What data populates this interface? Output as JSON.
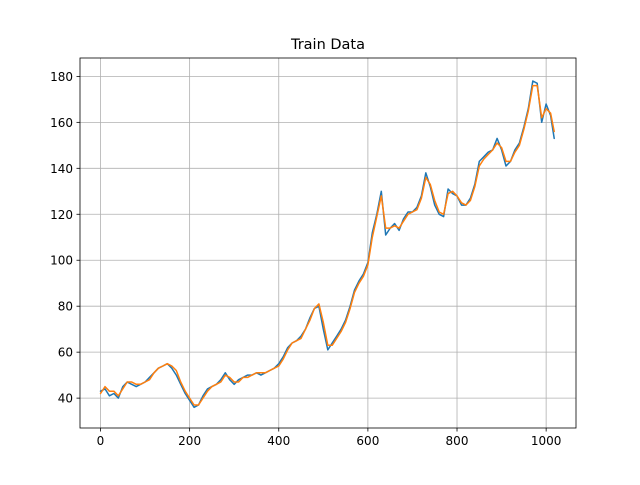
{
  "chart_data": {
    "type": "line",
    "title": "Train Data",
    "xlabel": "",
    "ylabel": "",
    "xlim": [
      -46,
      1067
    ],
    "ylim": [
      27,
      188
    ],
    "xticks": [
      0,
      200,
      400,
      600,
      800,
      1000
    ],
    "yticks": [
      40,
      60,
      80,
      100,
      120,
      140,
      160,
      180
    ],
    "grid": true,
    "legend": "none",
    "series": [
      {
        "color": "#1f77b4",
        "x": [
          0,
          10,
          20,
          30,
          40,
          50,
          60,
          70,
          80,
          90,
          100,
          110,
          120,
          130,
          140,
          150,
          160,
          170,
          180,
          190,
          200,
          210,
          220,
          230,
          240,
          250,
          260,
          270,
          280,
          290,
          300,
          310,
          320,
          330,
          340,
          350,
          360,
          370,
          380,
          390,
          400,
          410,
          420,
          430,
          440,
          450,
          460,
          470,
          480,
          490,
          500,
          510,
          520,
          530,
          540,
          550,
          560,
          570,
          580,
          590,
          600,
          610,
          620,
          630,
          640,
          650,
          660,
          670,
          680,
          690,
          700,
          710,
          720,
          730,
          740,
          750,
          760,
          770,
          780,
          790,
          800,
          810,
          820,
          830,
          840,
          850,
          860,
          870,
          880,
          890,
          900,
          910,
          920,
          930,
          940,
          950,
          960,
          970,
          980,
          990,
          1000,
          1010,
          1018
        ],
        "y": [
          43,
          44,
          41,
          42,
          40,
          45,
          47,
          46,
          45,
          46,
          47,
          49,
          51,
          53,
          54,
          55,
          53,
          50,
          46,
          42,
          39,
          36,
          37,
          41,
          44,
          45,
          46,
          48,
          51,
          48,
          46,
          48,
          49,
          50,
          50,
          51,
          50,
          51,
          52,
          53,
          55,
          58,
          62,
          64,
          65,
          67,
          70,
          75,
          79,
          80,
          70,
          61,
          64,
          67,
          70,
          74,
          80,
          87,
          91,
          94,
          99,
          112,
          120,
          130,
          111,
          114,
          116,
          113,
          118,
          121,
          121,
          123,
          128,
          138,
          132,
          124,
          120,
          119,
          131,
          129,
          128,
          124,
          124,
          127,
          133,
          143,
          145,
          147,
          148,
          153,
          148,
          141,
          143,
          148,
          151,
          158,
          166,
          178,
          177,
          160,
          168,
          163,
          153
        ]
      },
      {
        "color": "#ff7f0e",
        "x": [
          0,
          10,
          20,
          30,
          40,
          50,
          60,
          70,
          80,
          90,
          100,
          110,
          120,
          130,
          140,
          150,
          160,
          170,
          180,
          190,
          200,
          210,
          220,
          230,
          240,
          250,
          260,
          270,
          280,
          290,
          300,
          310,
          320,
          330,
          340,
          350,
          360,
          370,
          380,
          390,
          400,
          410,
          420,
          430,
          440,
          450,
          460,
          470,
          480,
          490,
          500,
          510,
          520,
          530,
          540,
          550,
          560,
          570,
          580,
          590,
          600,
          610,
          620,
          630,
          640,
          650,
          660,
          670,
          680,
          690,
          700,
          710,
          720,
          730,
          740,
          750,
          760,
          770,
          780,
          790,
          800,
          810,
          820,
          830,
          840,
          850,
          860,
          870,
          880,
          890,
          900,
          910,
          920,
          930,
          940,
          950,
          960,
          970,
          980,
          990,
          1000,
          1010,
          1018
        ],
        "y": [
          42,
          45,
          43,
          43,
          41,
          44,
          47,
          47,
          46,
          46,
          47,
          48,
          51,
          53,
          54,
          55,
          54,
          52,
          47,
          43,
          40,
          37,
          37,
          40,
          43,
          45,
          46,
          47,
          50,
          49,
          47,
          47,
          49,
          49,
          50,
          51,
          51,
          51,
          52,
          53,
          54,
          57,
          61,
          64,
          65,
          66,
          70,
          74,
          79,
          81,
          73,
          63,
          63,
          66,
          69,
          73,
          79,
          86,
          90,
          93,
          98,
          110,
          119,
          128,
          114,
          114,
          115,
          114,
          117,
          120,
          121,
          122,
          127,
          136,
          133,
          126,
          121,
          120,
          129,
          130,
          128,
          125,
          124,
          126,
          132,
          141,
          144,
          146,
          148,
          151,
          149,
          143,
          143,
          147,
          150,
          157,
          165,
          176,
          176,
          162,
          166,
          164,
          156
        ]
      }
    ]
  }
}
